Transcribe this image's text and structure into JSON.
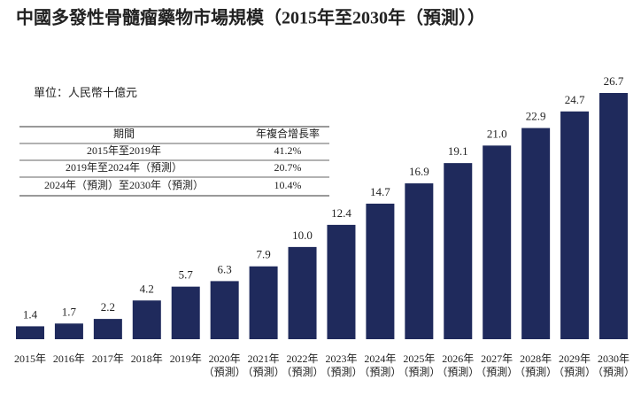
{
  "chart_data": {
    "type": "bar",
    "title": "中國多發性骨髓瘤藥物市場規模（2015年至2030年（預測））",
    "unit_label": "單位：人民幣十億元",
    "categories": [
      "2015年",
      "2016年",
      "2017年",
      "2018年",
      "2019年",
      "2020年\n（預測）",
      "2021年\n（預測）",
      "2022年\n（預測）",
      "2023年\n（預測）",
      "2024年\n（預測）",
      "2025年\n（預測）",
      "2026年\n（預測）",
      "2027年\n（預測）",
      "2028年\n（預測）",
      "2029年\n（預測）",
      "2030年\n（預測）"
    ],
    "values": [
      1.4,
      1.7,
      2.2,
      4.2,
      5.7,
      6.3,
      7.9,
      10.0,
      12.4,
      14.7,
      16.9,
      19.1,
      21.0,
      22.9,
      24.7,
      26.7
    ],
    "value_labels": [
      "1.4",
      "1.7",
      "2.2",
      "4.2",
      "5.7",
      "6.3",
      "7.9",
      "10.0",
      "12.4",
      "14.7",
      "16.9",
      "19.1",
      "21.0",
      "22.9",
      "24.7",
      "26.7"
    ],
    "color": "#1f2a5c",
    "cagr_table": {
      "columns": [
        "期間",
        "年複合增長率"
      ],
      "rows": [
        [
          "2015年至2019年",
          "41.2%"
        ],
        [
          "2019年至2024年（預測）",
          "20.7%"
        ],
        [
          "2024年（預測）至2030年（預測）",
          "10.4%"
        ]
      ]
    }
  }
}
